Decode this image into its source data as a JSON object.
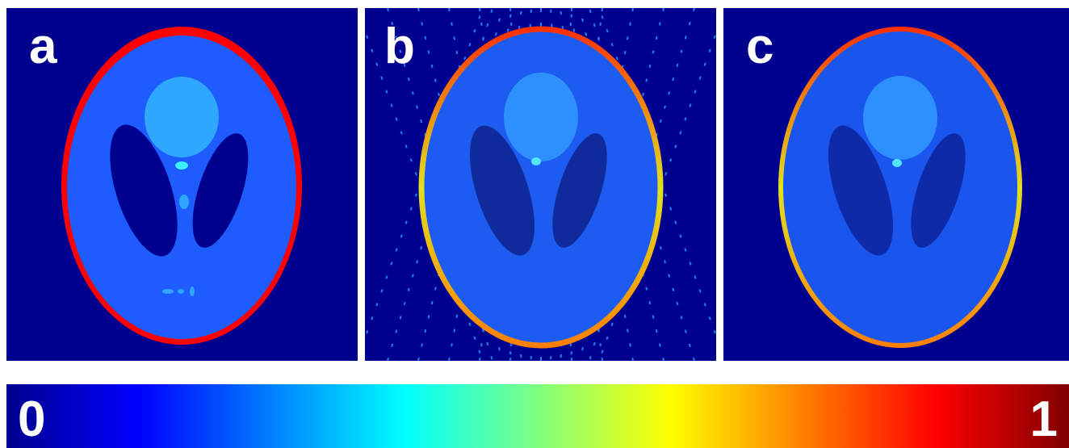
{
  "panels": [
    {
      "label": "a"
    },
    {
      "label": "b"
    },
    {
      "label": "c"
    }
  ],
  "colorbar": {
    "min_label": "0",
    "max_label": "1"
  }
}
